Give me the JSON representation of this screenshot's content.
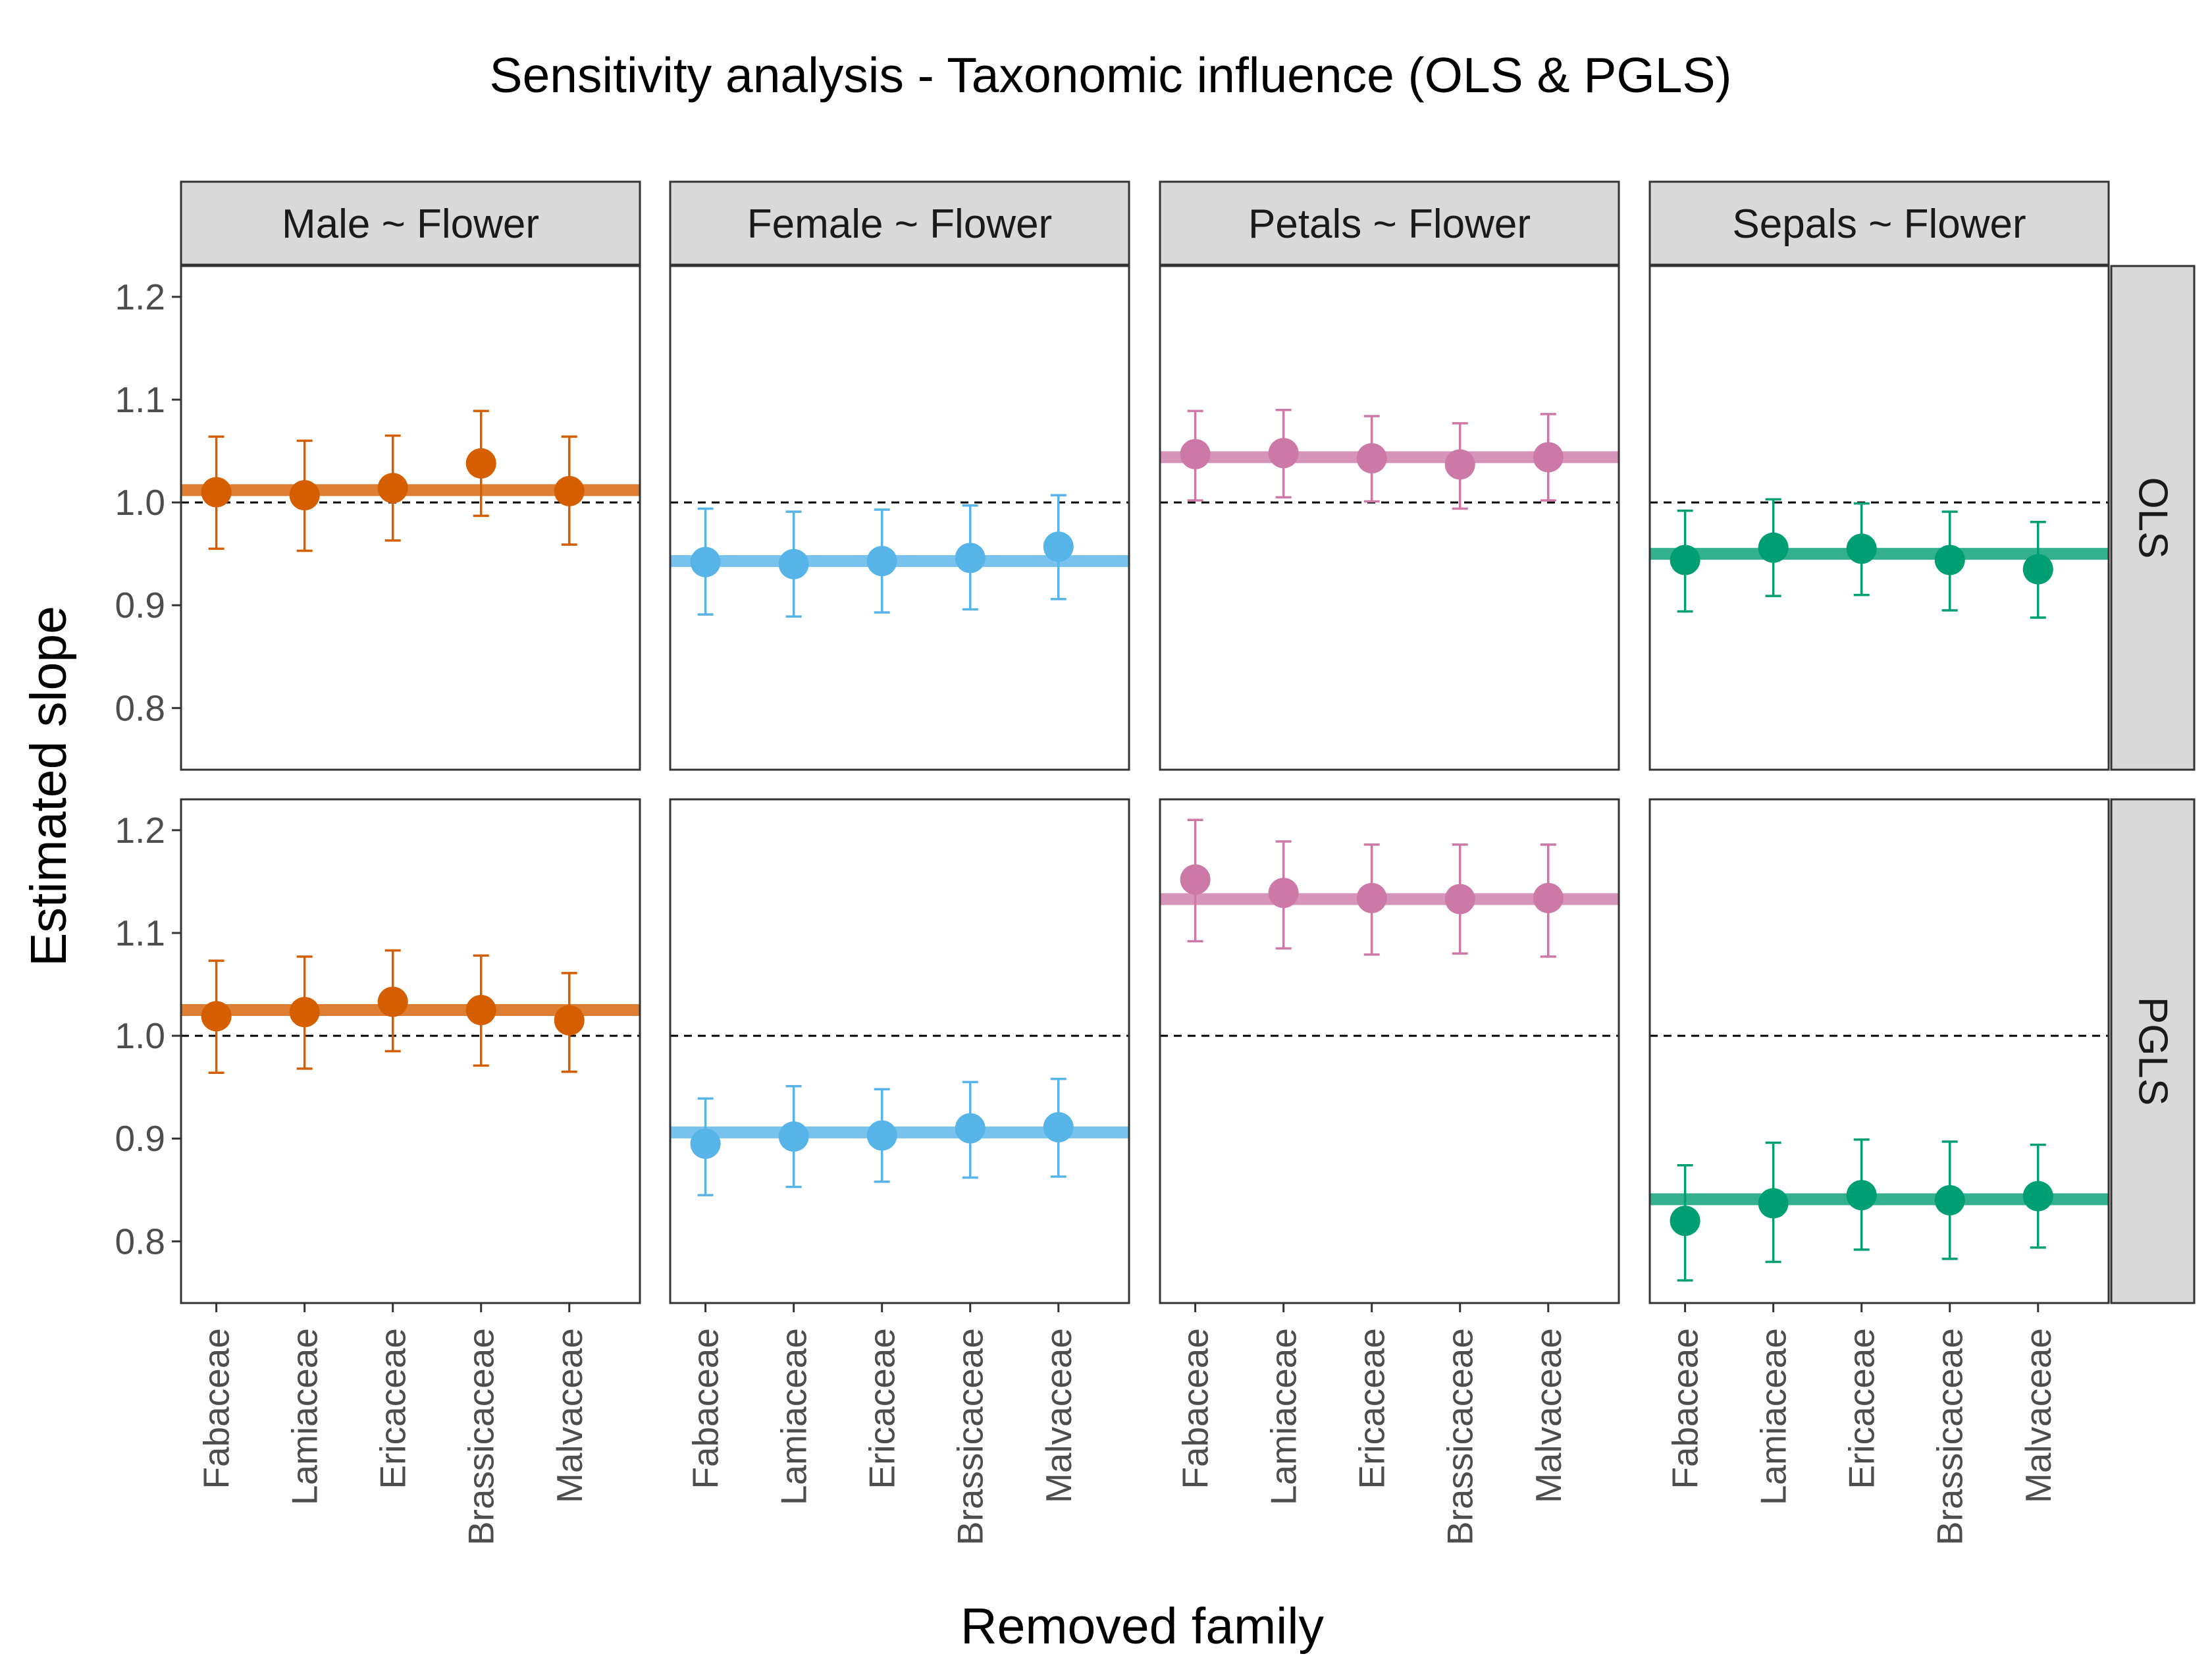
{
  "chart_data": {
    "type": "scatter",
    "title": "Sensitivity analysis - Taxonomic influence (OLS & PGLS)",
    "xlabel": "Removed family",
    "ylabel": "Estimated slope",
    "ylim": [
      0.74,
      1.23
    ],
    "yticks": [
      "0.8",
      "0.9",
      "1.0",
      "1.1",
      "1.2"
    ],
    "reference_line": 1.0,
    "categories": [
      "Fabaceae",
      "Lamiaceae",
      "Ericaceae",
      "Brassicaceae",
      "Malvaceae"
    ],
    "columns": [
      "Male ~ Flower",
      "Female ~ Flower",
      "Petals ~ Flower",
      "Sepals ~ Flower"
    ],
    "rows": [
      "OLS",
      "PGLS"
    ],
    "colors": {
      "Male ~ Flower": "#D55E00",
      "Female ~ Flower": "#56B4E9",
      "Petals ~ Flower": "#CC79A7",
      "Sepals ~ Flower": "#009E73"
    },
    "grid": false,
    "legend": "none",
    "panels": [
      {
        "column": "Male ~ Flower",
        "row": "OLS",
        "baseline": 1.012,
        "estimates": [
          1.01,
          1.007,
          1.014,
          1.038,
          1.011
        ],
        "lower": [
          0.955,
          0.953,
          0.963,
          0.987,
          0.959
        ],
        "upper": [
          1.064,
          1.06,
          1.065,
          1.089,
          1.064
        ]
      },
      {
        "column": "Female ~ Flower",
        "row": "OLS",
        "baseline": 0.943,
        "estimates": [
          0.942,
          0.94,
          0.943,
          0.946,
          0.957
        ],
        "lower": [
          0.891,
          0.889,
          0.893,
          0.896,
          0.906
        ],
        "upper": [
          0.994,
          0.991,
          0.993,
          0.997,
          1.007
        ]
      },
      {
        "column": "Petals ~ Flower",
        "row": "OLS",
        "baseline": 1.044,
        "estimates": [
          1.047,
          1.048,
          1.043,
          1.037,
          1.044
        ],
        "lower": [
          1.002,
          1.005,
          1.001,
          0.994,
          1.002
        ],
        "upper": [
          1.089,
          1.09,
          1.084,
          1.077,
          1.086
        ]
      },
      {
        "column": "Sepals ~ Flower",
        "row": "OLS",
        "baseline": 0.95,
        "estimates": [
          0.944,
          0.956,
          0.955,
          0.944,
          0.935
        ],
        "lower": [
          0.894,
          0.909,
          0.91,
          0.895,
          0.888
        ],
        "upper": [
          0.992,
          1.003,
          0.999,
          0.991,
          0.981
        ]
      },
      {
        "column": "Male ~ Flower",
        "row": "PGLS",
        "baseline": 1.025,
        "estimates": [
          1.019,
          1.023,
          1.033,
          1.025,
          1.015
        ],
        "lower": [
          0.964,
          0.968,
          0.985,
          0.971,
          0.965
        ],
        "upper": [
          1.073,
          1.077,
          1.083,
          1.078,
          1.061
        ]
      },
      {
        "column": "Female ~ Flower",
        "row": "PGLS",
        "baseline": 0.906,
        "estimates": [
          0.895,
          0.902,
          0.903,
          0.91,
          0.911
        ],
        "lower": [
          0.845,
          0.853,
          0.858,
          0.862,
          0.863
        ],
        "upper": [
          0.939,
          0.951,
          0.948,
          0.955,
          0.958
        ]
      },
      {
        "column": "Petals ~ Flower",
        "row": "PGLS",
        "baseline": 1.133,
        "estimates": [
          1.152,
          1.139,
          1.134,
          1.133,
          1.134
        ],
        "lower": [
          1.092,
          1.085,
          1.079,
          1.08,
          1.077
        ],
        "upper": [
          1.21,
          1.189,
          1.186,
          1.186,
          1.186
        ]
      },
      {
        "column": "Sepals ~ Flower",
        "row": "PGLS",
        "baseline": 0.841,
        "estimates": [
          0.82,
          0.837,
          0.845,
          0.84,
          0.844
        ],
        "lower": [
          0.762,
          0.78,
          0.792,
          0.783,
          0.794
        ],
        "upper": [
          0.874,
          0.896,
          0.899,
          0.897,
          0.894
        ]
      }
    ]
  }
}
